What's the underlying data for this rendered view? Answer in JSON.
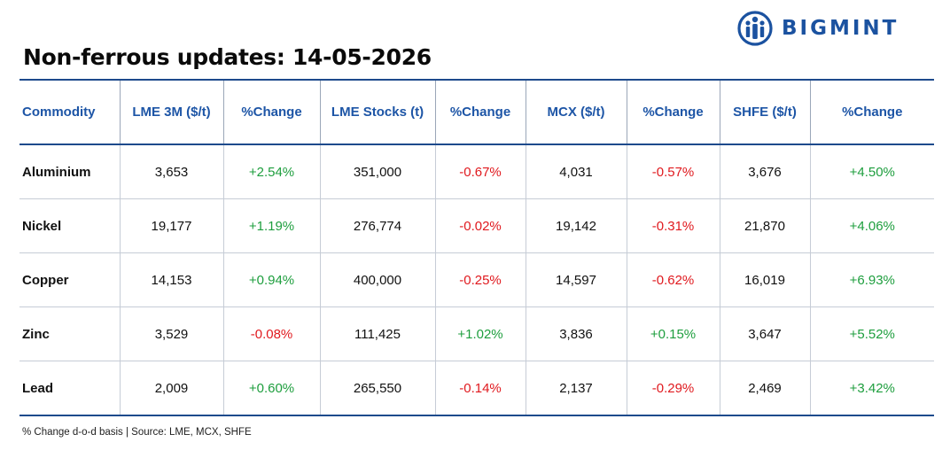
{
  "brand": {
    "name": "BIGMINT",
    "color": "#1b52a0"
  },
  "title": "Non-ferrous updates: 14-05-2026",
  "table": {
    "columns": [
      "Commodity",
      "LME 3M ($/t)",
      "%Change",
      "LME Stocks (t)",
      "%Change",
      "MCX ($/t)",
      "%Change",
      "SHFE ($/t)",
      "%Change"
    ],
    "rows": [
      [
        "Aluminium",
        "3,653",
        "+2.54%",
        "351,000",
        "-0.67%",
        "4,031",
        "-0.57%",
        "3,676",
        "+4.50%"
      ],
      [
        "Nickel",
        "19,177",
        "+1.19%",
        "276,774",
        "-0.02%",
        "19,142",
        "-0.31%",
        "21,870",
        "+4.06%"
      ],
      [
        "Copper",
        "14,153",
        "+0.94%",
        "400,000",
        "-0.25%",
        "14,597",
        "-0.62%",
        "16,019",
        "+6.93%"
      ],
      [
        "Zinc",
        "3,529",
        "-0.08%",
        "111,425",
        "+1.02%",
        "3,836",
        "+0.15%",
        "3,647",
        "+5.52%"
      ],
      [
        "Lead",
        "2,009",
        "+0.60%",
        "265,550",
        "-0.14%",
        "2,137",
        "-0.29%",
        "2,469",
        "+3.42%"
      ]
    ]
  },
  "colors": {
    "header": "#1d55a6",
    "positive": "#1e9e3e",
    "negative": "#e0191e",
    "rule": "#1d4a8c"
  },
  "footnote": "% Change d-o-d basis | Source: LME, MCX, SHFE"
}
